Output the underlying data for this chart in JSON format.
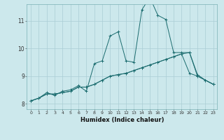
{
  "xlabel": "Humidex (Indice chaleur)",
  "x_ticks": [
    0,
    1,
    2,
    3,
    4,
    5,
    6,
    7,
    8,
    9,
    10,
    11,
    12,
    13,
    14,
    15,
    16,
    17,
    18,
    19,
    20,
    21,
    22,
    23
  ],
  "xlim": [
    -0.5,
    23.5
  ],
  "ylim": [
    7.8,
    11.6
  ],
  "yticks": [
    8,
    9,
    10,
    11
  ],
  "background_color": "#cce8ec",
  "grid_color": "#aacdd4",
  "line_color": "#1a6b6e",
  "series": [
    [
      8.1,
      8.2,
      8.35,
      8.35,
      8.4,
      8.45,
      8.6,
      8.6,
      8.7,
      8.85,
      9.0,
      9.05,
      9.1,
      9.2,
      9.3,
      9.4,
      9.5,
      9.6,
      9.7,
      9.8,
      9.1,
      9.0,
      8.85,
      8.7
    ],
    [
      8.1,
      8.2,
      8.35,
      8.35,
      8.4,
      8.45,
      8.6,
      8.6,
      8.7,
      8.85,
      9.0,
      9.05,
      9.1,
      9.2,
      9.3,
      9.4,
      9.5,
      9.6,
      9.7,
      9.8,
      9.85,
      9.0,
      8.85,
      8.7
    ],
    [
      8.1,
      8.2,
      8.4,
      8.3,
      8.45,
      8.5,
      8.65,
      8.45,
      9.45,
      9.55,
      10.45,
      10.6,
      9.55,
      9.5,
      11.4,
      11.85,
      11.2,
      11.05,
      9.85,
      9.85,
      9.85,
      9.05,
      8.85,
      8.7
    ]
  ]
}
